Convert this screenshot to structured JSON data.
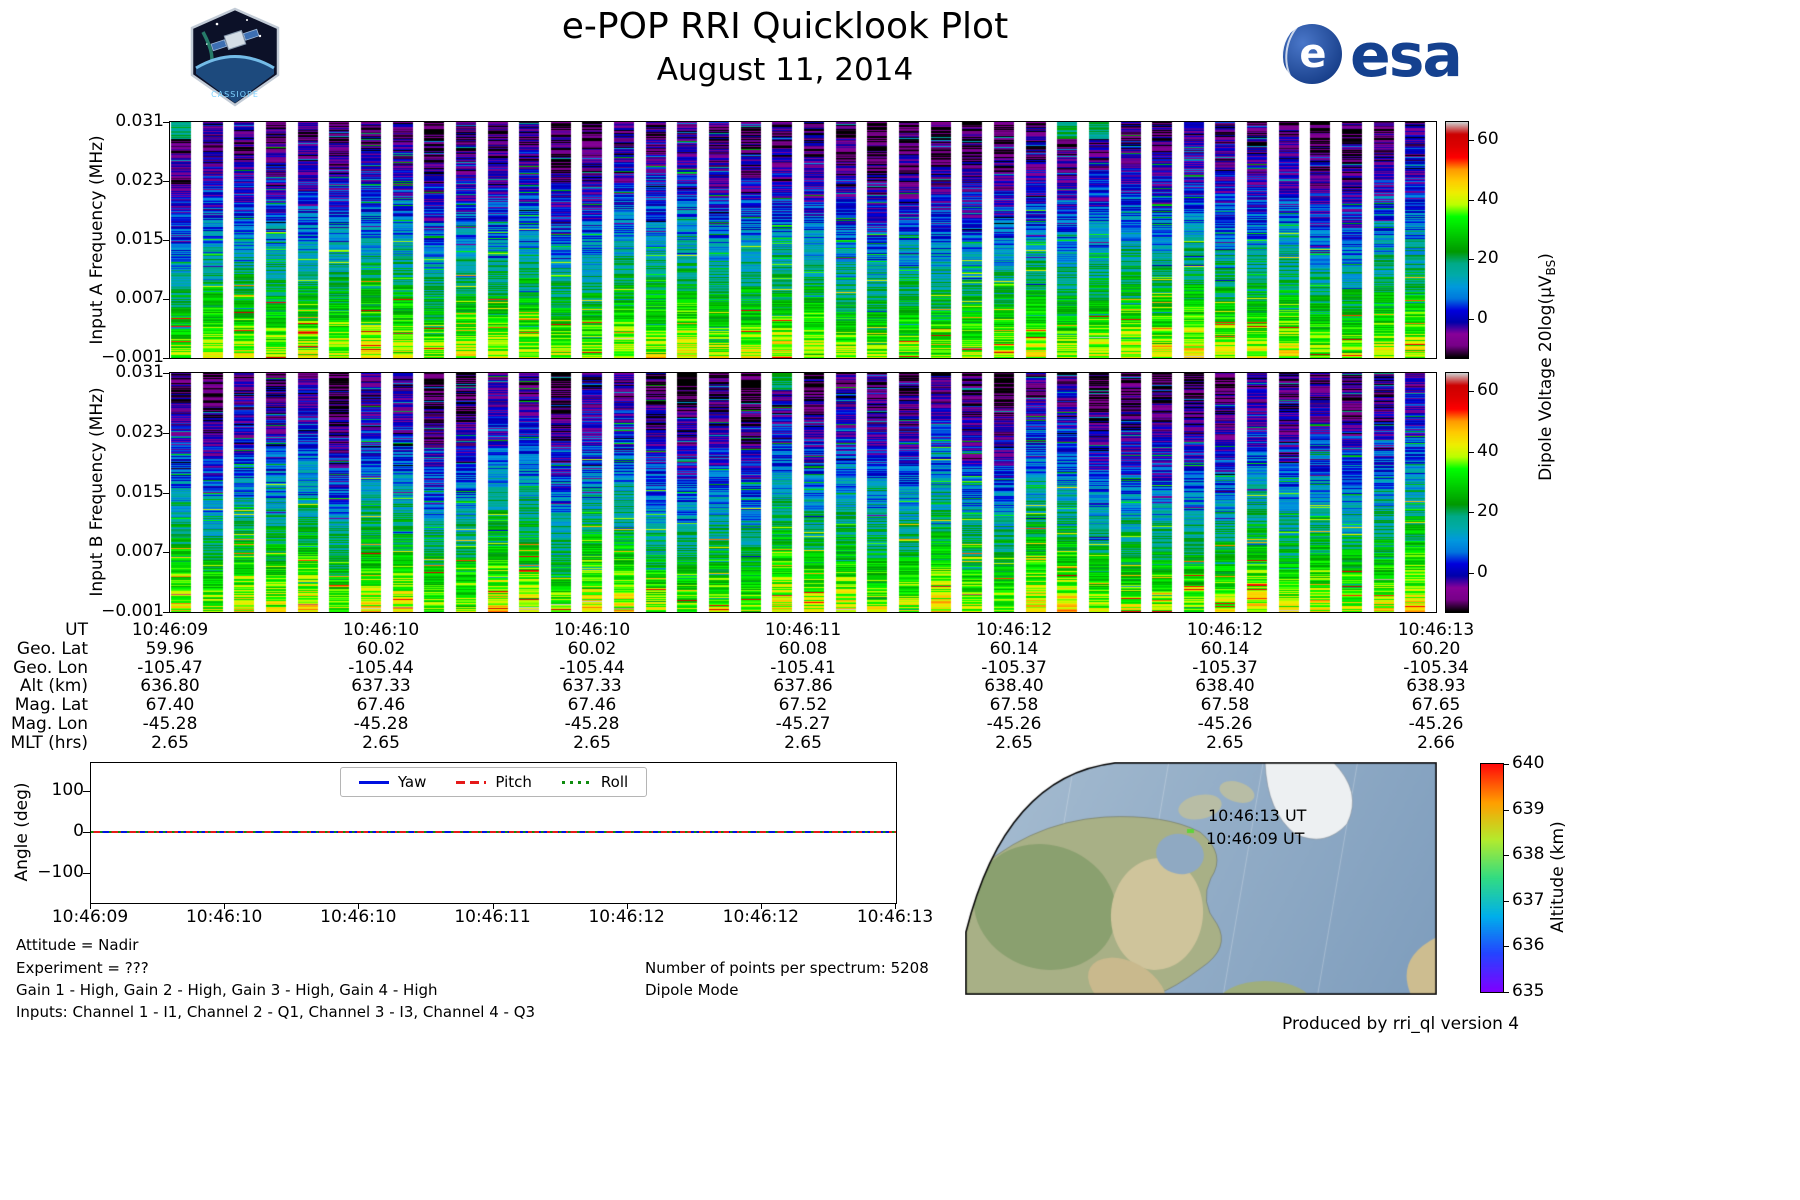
{
  "header": {
    "title": "e-POP RRI Quicklook Plot",
    "subtitle": "August 11, 2014",
    "patch_label": "CASSIOPE",
    "esa_text": "esa",
    "esa_globe_letter": "e"
  },
  "brand": {
    "esa_blue": "#15418f"
  },
  "chart_data": [
    {
      "id": "input_a_spectrogram",
      "type": "heatmap",
      "ylabel": "Input A Frequency (MHz)",
      "ylim": [
        -0.001,
        0.031
      ],
      "yticks": [
        0.031,
        0.023,
        0.015,
        0.007,
        -0.001
      ],
      "time_start": "10:46:09",
      "time_end": "10:46:13",
      "num_bursts": 40,
      "burst_duty": 0.62,
      "colormap": "nipy_spectral",
      "value_range": [
        -13,
        66
      ],
      "description": "Pulsed RRI burst spectrogram: high power (green/yellow, ~35-50) near 0 MHz, mid power (cyan/blue, ~10-25) at mid frequencies, low power (purple/black, <5) toward 0.031 MHz, with random horizontal line noise and white gaps between bursts"
    },
    {
      "id": "input_b_spectrogram",
      "type": "heatmap",
      "ylabel": "Input B Frequency (MHz)",
      "ylim": [
        -0.001,
        0.031
      ],
      "yticks": [
        0.031,
        0.023,
        0.015,
        0.007,
        -0.001
      ],
      "time_start": "10:46:09",
      "time_end": "10:46:13",
      "num_bursts": 40,
      "burst_duty": 0.62,
      "colormap": "nipy_spectral",
      "value_range": [
        -13,
        66
      ],
      "description": "Same burst pattern as Input A"
    },
    {
      "id": "dipole_voltage_colorbar",
      "type": "colorbar",
      "label_prefix": "Dipole Voltage 20log(μV",
      "label_sub": "BS",
      "label_suffix": ")",
      "ticks": [
        0,
        20,
        40,
        60
      ],
      "range": [
        -13,
        66
      ],
      "colormap": "nipy_spectral"
    },
    {
      "id": "attitude_plot",
      "type": "line",
      "ylabel": "Angle (deg)",
      "ylim": [
        -172,
        172
      ],
      "yticks": [
        100,
        0,
        -100
      ],
      "xticklabels": [
        "10:46:09",
        "10:46:10",
        "10:46:10",
        "10:46:11",
        "10:46:12",
        "10:46:12",
        "10:46:13"
      ],
      "series": [
        {
          "name": "Yaw",
          "color": "#0010e0",
          "style": "solid",
          "values": [
            0,
            0,
            0,
            0,
            0,
            0,
            0
          ]
        },
        {
          "name": "Pitch",
          "color": "#e51919",
          "style": "dashed",
          "values": [
            0,
            0,
            0,
            0,
            0,
            0,
            0
          ]
        },
        {
          "name": "Roll",
          "color": "#0f8c0f",
          "style": "dotted",
          "values": [
            0,
            0,
            0,
            0,
            0,
            0,
            0
          ]
        }
      ],
      "legend_position": "top center"
    },
    {
      "id": "ephemeris_table",
      "type": "table",
      "row_labels": [
        "UT",
        "Geo. Lat",
        "Geo. Lon",
        "Alt (km)",
        "Mag. Lat",
        "Mag. Lon",
        "MLT (hrs)"
      ],
      "columns": [
        [
          "10:46:09",
          "59.96",
          "-105.47",
          "636.80",
          "67.40",
          "-45.28",
          "2.65"
        ],
        [
          "10:46:10",
          "60.02",
          "-105.44",
          "637.33",
          "67.46",
          "-45.28",
          "2.65"
        ],
        [
          "10:46:10",
          "60.02",
          "-105.44",
          "637.33",
          "67.46",
          "-45.28",
          "2.65"
        ],
        [
          "10:46:11",
          "60.08",
          "-105.41",
          "637.86",
          "67.52",
          "-45.27",
          "2.65"
        ],
        [
          "10:46:12",
          "60.14",
          "-105.37",
          "638.40",
          "67.58",
          "-45.26",
          "2.65"
        ],
        [
          "10:46:12",
          "60.14",
          "-105.37",
          "638.40",
          "67.58",
          "-45.26",
          "2.65"
        ],
        [
          "10:46:13",
          "60.20",
          "-105.34",
          "638.93",
          "67.65",
          "-45.26",
          "2.66"
        ]
      ]
    },
    {
      "id": "ground_track_map",
      "type": "map",
      "annotations": [
        "10:46:13 UT",
        "10:46:09 UT"
      ],
      "colorbar_label": "Altitude (km)",
      "colorbar_ticks": [
        640,
        639,
        638,
        637,
        636,
        635
      ],
      "colorbar_range": [
        635,
        640
      ],
      "colormap": "rainbow",
      "region": "North America, North Atlantic, Greenland"
    }
  ],
  "notes": {
    "attitude": "Attitude = Nadir",
    "experiment": "Experiment = ???",
    "gains": "Gain 1 - High, Gain 2 - High, Gain 3 - High, Gain 4 - High",
    "inputs": "Inputs: Channel 1 - I1, Channel 2 - Q1, Channel 3 - I3, Channel 4 - Q3",
    "points": "Number of points per spectrum: 5208",
    "mode": "Dipole Mode",
    "credit": "Produced by rri_ql version 4"
  }
}
